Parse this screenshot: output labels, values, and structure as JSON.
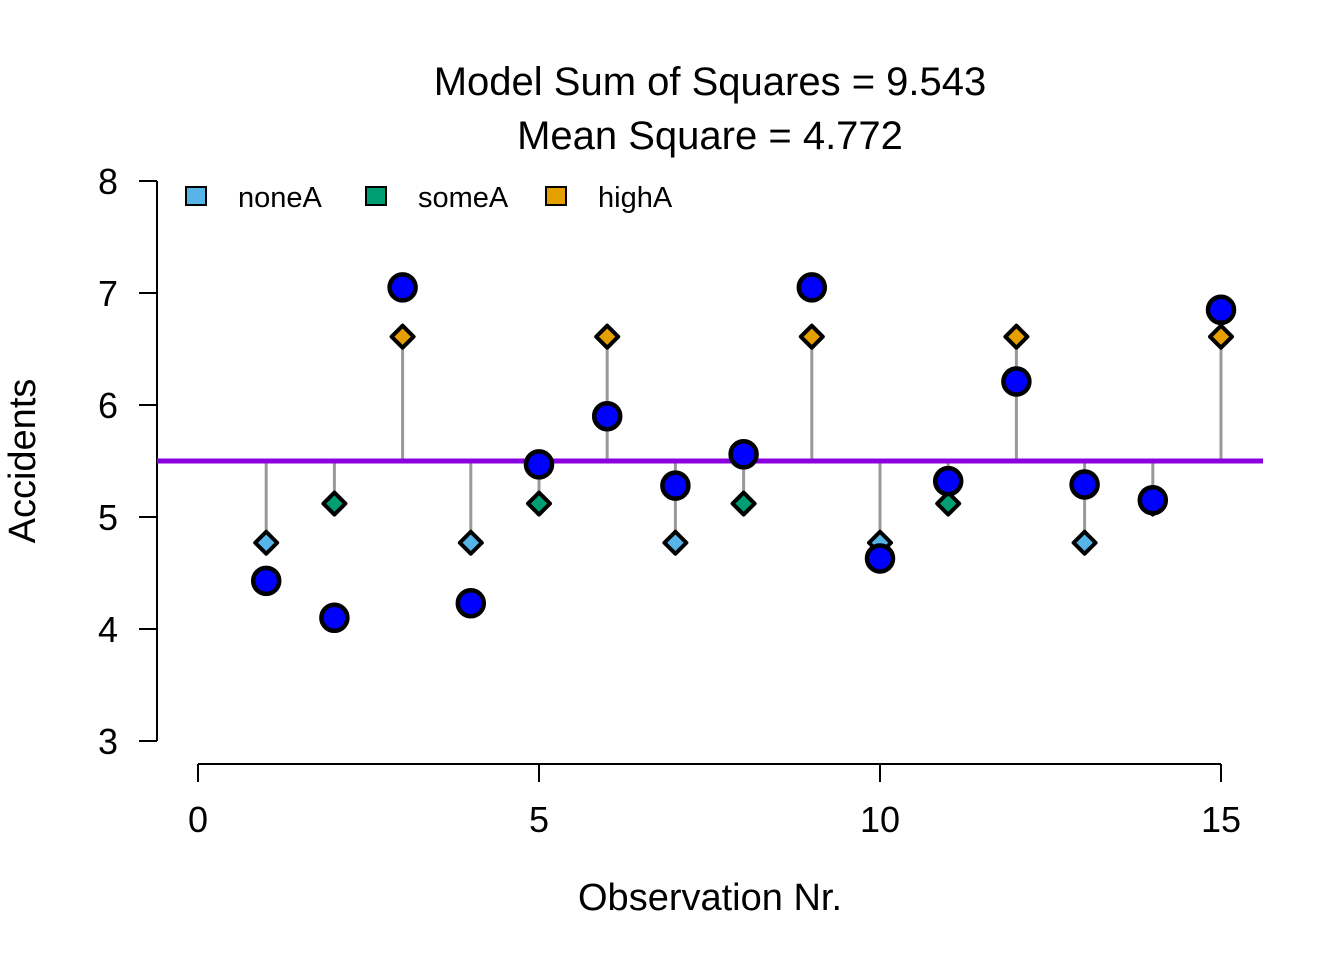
{
  "chart_data": {
    "type": "scatter",
    "title_line1": "Model Sum of Squares = 9.543",
    "title_line2": "Mean Square = 4.772",
    "xlabel": "Observation Nr.",
    "ylabel": "Accidents",
    "xlim": [
      0,
      15
    ],
    "ylim": [
      3,
      8
    ],
    "x_ticks": [
      0,
      5,
      10,
      15
    ],
    "y_ticks": [
      3,
      4,
      5,
      6,
      7,
      8
    ],
    "grand_mean": 5.5,
    "colors": {
      "noneA": "#56B4E9",
      "someA": "#009E73",
      "highA": "#E69F00",
      "observed": "#0000FF",
      "mean_line": "#8B00E0",
      "segment": "#999999"
    },
    "legend": [
      {
        "label": "noneA",
        "color": "#56B4E9"
      },
      {
        "label": "someA",
        "color": "#009E73"
      },
      {
        "label": "highA",
        "color": "#E69F00"
      }
    ],
    "group_means": {
      "noneA": 4.77,
      "someA": 5.12,
      "highA": 6.61
    },
    "observations": [
      {
        "x": 1,
        "y": 4.43,
        "group": "noneA"
      },
      {
        "x": 2,
        "y": 4.1,
        "group": "someA"
      },
      {
        "x": 3,
        "y": 7.05,
        "group": "highA"
      },
      {
        "x": 4,
        "y": 4.23,
        "group": "noneA"
      },
      {
        "x": 5,
        "y": 5.47,
        "group": "someA"
      },
      {
        "x": 6,
        "y": 5.9,
        "group": "highA"
      },
      {
        "x": 7,
        "y": 5.28,
        "group": "noneA"
      },
      {
        "x": 8,
        "y": 5.56,
        "group": "someA"
      },
      {
        "x": 9,
        "y": 7.05,
        "group": "highA"
      },
      {
        "x": 10,
        "y": 4.63,
        "group": "noneA"
      },
      {
        "x": 11,
        "y": 5.32,
        "group": "someA"
      },
      {
        "x": 12,
        "y": 6.21,
        "group": "highA"
      },
      {
        "x": 13,
        "y": 5.29,
        "group": "noneA"
      },
      {
        "x": 14,
        "y": 5.15,
        "group": "someA"
      },
      {
        "x": 15,
        "y": 6.85,
        "group": "highA"
      }
    ]
  }
}
